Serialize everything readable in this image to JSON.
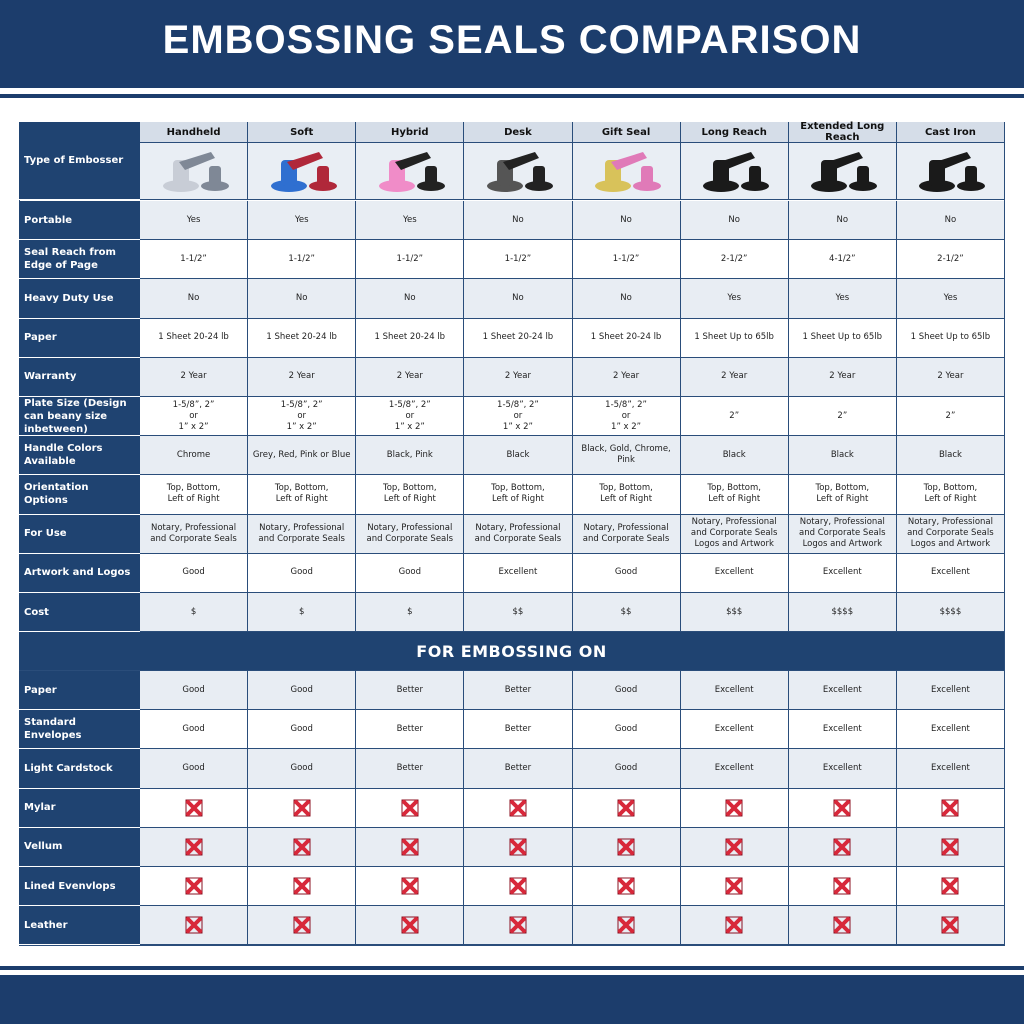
{
  "header": {
    "title": "EMBOSSING SEALS COMPARISON"
  },
  "table": {
    "corner": "Type of Embosser",
    "columns": [
      "Handheld",
      "Soft",
      "Hybrid",
      "Desk",
      "Gift Seal",
      "Long Reach",
      "Extended Long Reach",
      "Cast Iron"
    ],
    "rows": [
      {
        "label": "Portable",
        "values": [
          "Yes",
          "Yes",
          "Yes",
          "No",
          "No",
          "No",
          "No",
          "No"
        ]
      },
      {
        "label": "Seal Reach from Edge of Page",
        "values": [
          "1-1/2”",
          "1-1/2”",
          "1-1/2”",
          "1-1/2”",
          "1-1/2”",
          "2-1/2”",
          "4-1/2”",
          "2-1/2”"
        ]
      },
      {
        "label": "Heavy Duty Use",
        "values": [
          "No",
          "No",
          "No",
          "No",
          "No",
          "Yes",
          "Yes",
          "Yes"
        ]
      },
      {
        "label": "Paper",
        "values": [
          "1 Sheet 20-24 lb",
          "1 Sheet 20-24 lb",
          "1 Sheet 20-24 lb",
          "1 Sheet 20-24 lb",
          "1 Sheet 20-24 lb",
          "1 Sheet Up to 65lb",
          "1 Sheet Up to 65lb",
          "1 Sheet Up to 65lb"
        ]
      },
      {
        "label": "Warranty",
        "values": [
          "2 Year",
          "2 Year",
          "2 Year",
          "2 Year",
          "2 Year",
          "2 Year",
          "2 Year",
          "2 Year"
        ]
      },
      {
        "label": "Plate Size (Design can beany size inbetween)",
        "values": [
          "1-5/8”, 2”\nor\n1” x 2”",
          "1-5/8”, 2”\nor\n1” x 2”",
          "1-5/8”, 2”\nor\n1” x 2”",
          "1-5/8”, 2”\nor\n1” x 2”",
          "1-5/8”, 2”\nor\n1” x 2”",
          "2”",
          "2”",
          "2”"
        ]
      },
      {
        "label": "Handle Colors Available",
        "values": [
          "Chrome",
          "Grey, Red, Pink or Blue",
          "Black, Pink",
          "Black",
          "Black, Gold, Chrome, Pink",
          "Black",
          "Black",
          "Black"
        ]
      },
      {
        "label": "Orientation Options",
        "values": [
          "Top, Bottom,\nLeft of Right",
          "Top, Bottom,\nLeft of Right",
          "Top, Bottom,\nLeft of Right",
          "Top, Bottom,\nLeft of Right",
          "Top, Bottom,\nLeft of Right",
          "Top, Bottom,\nLeft of Right",
          "Top, Bottom,\nLeft of Right",
          "Top, Bottom,\nLeft of Right"
        ]
      },
      {
        "label": "For Use",
        "values": [
          "Notary, Professional\nand Corporate Seals",
          "Notary, Professional\nand Corporate Seals",
          "Notary, Professional\nand Corporate Seals",
          "Notary, Professional\nand Corporate Seals",
          "Notary, Professional\nand Corporate Seals",
          "Notary, Professional\nand Corporate Seals\nLogos and Artwork",
          "Notary, Professional\nand Corporate Seals\nLogos and Artwork",
          "Notary, Professional\nand Corporate Seals\nLogos and Artwork"
        ]
      },
      {
        "label": "Artwork and Logos",
        "values": [
          "Good",
          "Good",
          "Good",
          "Excellent",
          "Good",
          "Excellent",
          "Excellent",
          "Excellent"
        ]
      },
      {
        "label": "Cost",
        "values": [
          "$",
          "$",
          "$",
          "$$",
          "$$",
          "$$$",
          "$$$$",
          "$$$$"
        ]
      }
    ],
    "section_title": "FOR EMBOSSING ON",
    "section_rows": [
      {
        "label": "Paper",
        "values": [
          "Good",
          "Good",
          "Better",
          "Better",
          "Good",
          "Excellent",
          "Excellent",
          "Excellent"
        ]
      },
      {
        "label": "Standard Envelopes",
        "values": [
          "Good",
          "Good",
          "Better",
          "Better",
          "Good",
          "Excellent",
          "Excellent",
          "Excellent"
        ]
      },
      {
        "label": "Light Cardstock",
        "values": [
          "Good",
          "Good",
          "Better",
          "Better",
          "Good",
          "Excellent",
          "Excellent",
          "Excellent"
        ]
      },
      {
        "label": "Mylar"
      },
      {
        "label": "Vellum"
      },
      {
        "label": "Lined Evenvlops"
      },
      {
        "label": "Leather"
      }
    ]
  }
}
